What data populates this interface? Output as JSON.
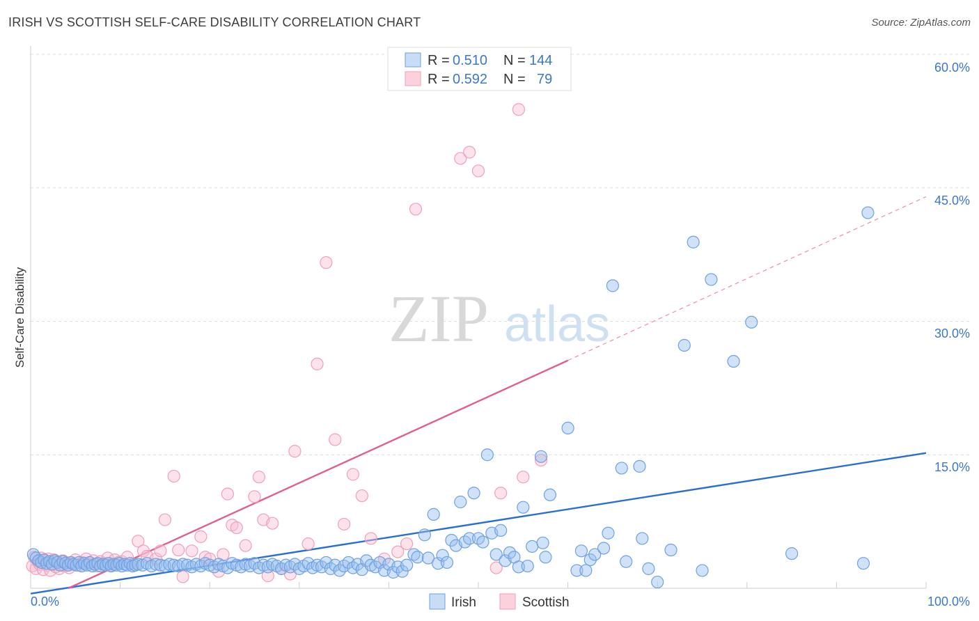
{
  "header": {
    "title": "IRISH VS SCOTTISH SELF-CARE DISABILITY CORRELATION CHART",
    "source": "Source: ZipAtlas.com"
  },
  "watermark": {
    "zip": "ZIP",
    "atlas": "atlas"
  },
  "colors": {
    "irish": "#6fa0e0",
    "irish_line": "#2a6fd0",
    "scottish": "#f0a0b8",
    "scottish_line": "#e0608a",
    "tick_text": "#3a78c9"
  },
  "legend": {
    "irish": {
      "r_label": "R =",
      "r_value": "0.510",
      "n_label": "N =",
      "n_value": "144"
    },
    "scottish": {
      "r_label": "R =",
      "r_value": "0.592",
      "n_label": "N =",
      "n_value": "79"
    }
  },
  "chart_data": {
    "type": "scatter",
    "ylabel": "Self-Care Disability",
    "xlim": [
      0,
      100
    ],
    "ylim": [
      0,
      60
    ],
    "x_tick_labels": [
      "0.0%",
      "100.0%"
    ],
    "y_ticks": [
      15,
      30,
      45,
      60
    ],
    "y_tick_labels": [
      "15.0%",
      "30.0%",
      "45.0%",
      "60.0%"
    ],
    "series": [
      {
        "name": "Irish",
        "trend": {
          "x0": 0,
          "y0": -0.6,
          "x1": 100,
          "y1": 15.2
        },
        "points": [
          [
            0.3,
            3.8
          ],
          [
            0.6,
            3.4
          ],
          [
            0.9,
            3.1
          ],
          [
            1.2,
            2.9
          ],
          [
            1.5,
            3.2
          ],
          [
            1.8,
            2.8
          ],
          [
            2.1,
            3.0
          ],
          [
            2.4,
            2.7
          ],
          [
            2.7,
            3.1
          ],
          [
            3.0,
            2.9
          ],
          [
            3.3,
            2.6
          ],
          [
            3.6,
            3.0
          ],
          [
            3.9,
            2.8
          ],
          [
            4.2,
            2.6
          ],
          [
            4.5,
            2.9
          ],
          [
            4.8,
            2.7
          ],
          [
            5.1,
            2.6
          ],
          [
            5.4,
            2.9
          ],
          [
            5.7,
            2.5
          ],
          [
            6.0,
            2.8
          ],
          [
            6.3,
            2.6
          ],
          [
            6.6,
            2.9
          ],
          [
            6.9,
            2.5
          ],
          [
            7.2,
            2.7
          ],
          [
            7.5,
            2.8
          ],
          [
            7.8,
            2.5
          ],
          [
            8.1,
            2.7
          ],
          [
            8.4,
            2.6
          ],
          [
            8.7,
            2.8
          ],
          [
            9.0,
            2.5
          ],
          [
            9.3,
            2.7
          ],
          [
            9.6,
            2.6
          ],
          [
            9.9,
            2.8
          ],
          [
            10.2,
            2.5
          ],
          [
            10.5,
            2.7
          ],
          [
            10.8,
            2.6
          ],
          [
            11.1,
            2.8
          ],
          [
            11.4,
            2.5
          ],
          [
            11.7,
            2.6
          ],
          [
            12.0,
            2.7
          ],
          [
            12.5,
            2.6
          ],
          [
            13.0,
            2.8
          ],
          [
            13.5,
            2.5
          ],
          [
            14.0,
            2.7
          ],
          [
            14.5,
            2.6
          ],
          [
            15.0,
            2.5
          ],
          [
            15.5,
            2.7
          ],
          [
            16.0,
            2.6
          ],
          [
            16.5,
            2.5
          ],
          [
            17.0,
            2.7
          ],
          [
            17.5,
            2.6
          ],
          [
            18.0,
            2.4
          ],
          [
            18.5,
            2.7
          ],
          [
            19.0,
            2.5
          ],
          [
            19.5,
            2.8
          ],
          [
            20.0,
            2.6
          ],
          [
            20.5,
            2.4
          ],
          [
            21.0,
            2.7
          ],
          [
            21.5,
            2.5
          ],
          [
            22.0,
            2.3
          ],
          [
            22.5,
            2.8
          ],
          [
            23.0,
            2.6
          ],
          [
            23.5,
            2.4
          ],
          [
            24.0,
            2.7
          ],
          [
            24.5,
            2.5
          ],
          [
            25.0,
            2.8
          ],
          [
            25.5,
            2.3
          ],
          [
            26.0,
            2.6
          ],
          [
            26.5,
            2.4
          ],
          [
            27.0,
            2.7
          ],
          [
            27.5,
            2.5
          ],
          [
            28.0,
            2.2
          ],
          [
            28.5,
            2.6
          ],
          [
            29.0,
            2.4
          ],
          [
            29.5,
            2.7
          ],
          [
            30.0,
            2.2
          ],
          [
            30.5,
            2.5
          ],
          [
            31.0,
            2.8
          ],
          [
            31.5,
            2.3
          ],
          [
            32.0,
            2.6
          ],
          [
            32.5,
            2.4
          ],
          [
            33.0,
            2.9
          ],
          [
            33.5,
            2.2
          ],
          [
            34.0,
            2.6
          ],
          [
            34.5,
            2.0
          ],
          [
            35.0,
            2.5
          ],
          [
            35.5,
            2.9
          ],
          [
            36.0,
            2.3
          ],
          [
            36.5,
            2.7
          ],
          [
            37.0,
            2.1
          ],
          [
            37.5,
            3.1
          ],
          [
            38.0,
            2.6
          ],
          [
            38.5,
            2.4
          ],
          [
            39.0,
            2.9
          ],
          [
            39.5,
            2.0
          ],
          [
            40.0,
            2.7
          ],
          [
            40.5,
            1.8
          ],
          [
            41.0,
            2.4
          ],
          [
            41.5,
            1.9
          ],
          [
            42.0,
            2.6
          ],
          [
            42.8,
            3.8
          ],
          [
            43.2,
            3.5
          ],
          [
            44.0,
            6.0
          ],
          [
            44.4,
            3.4
          ],
          [
            45.0,
            8.3
          ],
          [
            45.5,
            2.8
          ],
          [
            46.0,
            3.7
          ],
          [
            46.5,
            2.9
          ],
          [
            47.0,
            5.4
          ],
          [
            47.5,
            4.8
          ],
          [
            48.0,
            9.7
          ],
          [
            48.5,
            5.2
          ],
          [
            49.0,
            5.6
          ],
          [
            49.5,
            10.7
          ],
          [
            50.0,
            5.6
          ],
          [
            50.5,
            5.2
          ],
          [
            51.0,
            15.0
          ],
          [
            51.5,
            6.2
          ],
          [
            52.0,
            3.8
          ],
          [
            52.5,
            6.5
          ],
          [
            53.0,
            3.1
          ],
          [
            53.5,
            4.0
          ],
          [
            54.0,
            3.5
          ],
          [
            54.5,
            2.4
          ],
          [
            55.0,
            9.1
          ],
          [
            55.5,
            2.5
          ],
          [
            56.0,
            4.7
          ],
          [
            57.0,
            14.8
          ],
          [
            57.2,
            5.1
          ],
          [
            57.5,
            3.5
          ],
          [
            58.0,
            10.5
          ],
          [
            60.0,
            18.0
          ],
          [
            61.0,
            2.0
          ],
          [
            61.5,
            4.2
          ],
          [
            62.0,
            2.0
          ],
          [
            62.5,
            3.2
          ],
          [
            63.0,
            3.8
          ],
          [
            64.0,
            4.5
          ],
          [
            64.5,
            6.2
          ],
          [
            65.0,
            34.0
          ],
          [
            66.0,
            13.5
          ],
          [
            66.5,
            3.0
          ],
          [
            68.0,
            13.7
          ],
          [
            68.3,
            5.6
          ],
          [
            69.0,
            2.2
          ],
          [
            70.0,
            0.7
          ],
          [
            71.5,
            4.3
          ],
          [
            73.0,
            27.3
          ],
          [
            74.0,
            38.9
          ],
          [
            75.0,
            2.0
          ],
          [
            76.0,
            34.7
          ],
          [
            78.5,
            25.5
          ],
          [
            80.5,
            29.9
          ],
          [
            85.0,
            3.9
          ],
          [
            93.0,
            2.8
          ],
          [
            93.5,
            42.2
          ]
        ]
      },
      {
        "name": "Scottish",
        "trend": {
          "x0": 4.2,
          "y0": 0,
          "x1": 60,
          "y1": 25.6,
          "dash_x1": 100,
          "dash_y1": 44.0
        },
        "points": [
          [
            0.2,
            2.5
          ],
          [
            0.4,
            3.5
          ],
          [
            0.6,
            2.2
          ],
          [
            0.8,
            3.0
          ],
          [
            1.0,
            2.7
          ],
          [
            1.2,
            3.4
          ],
          [
            1.4,
            2.1
          ],
          [
            1.6,
            3.1
          ],
          [
            1.8,
            2.6
          ],
          [
            2.0,
            3.3
          ],
          [
            2.2,
            2.0
          ],
          [
            2.4,
            2.8
          ],
          [
            2.6,
            3.2
          ],
          [
            2.8,
            2.4
          ],
          [
            3.0,
            3.0
          ],
          [
            3.2,
            2.2
          ],
          [
            3.4,
            2.7
          ],
          [
            3.6,
            3.1
          ],
          [
            3.8,
            2.5
          ],
          [
            4.0,
            2.9
          ],
          [
            4.3,
            2.3
          ],
          [
            4.6,
            2.8
          ],
          [
            5.0,
            3.2
          ],
          [
            5.4,
            2.6
          ],
          [
            5.8,
            2.9
          ],
          [
            6.2,
            3.3
          ],
          [
            6.6,
            2.7
          ],
          [
            7.0,
            3.1
          ],
          [
            7.4,
            2.5
          ],
          [
            7.8,
            3.0
          ],
          [
            8.2,
            2.8
          ],
          [
            8.6,
            3.4
          ],
          [
            9.0,
            2.6
          ],
          [
            9.4,
            3.2
          ],
          [
            9.8,
            2.9
          ],
          [
            10.2,
            3.0
          ],
          [
            10.8,
            3.5
          ],
          [
            11.4,
            2.7
          ],
          [
            12.0,
            5.3
          ],
          [
            12.6,
            4.2
          ],
          [
            13.0,
            3.6
          ],
          [
            14.0,
            3.3
          ],
          [
            14.5,
            4.2
          ],
          [
            15.0,
            7.7
          ],
          [
            16.0,
            12.6
          ],
          [
            16.5,
            4.3
          ],
          [
            17.0,
            1.3
          ],
          [
            18.0,
            4.2
          ],
          [
            19.0,
            5.8
          ],
          [
            19.5,
            3.5
          ],
          [
            20.0,
            3.3
          ],
          [
            21.0,
            1.9
          ],
          [
            21.5,
            3.8
          ],
          [
            22.0,
            10.6
          ],
          [
            22.5,
            7.1
          ],
          [
            23.0,
            6.8
          ],
          [
            24.0,
            4.8
          ],
          [
            25.0,
            10.3
          ],
          [
            25.5,
            12.5
          ],
          [
            26.0,
            7.7
          ],
          [
            26.5,
            1.4
          ],
          [
            27.0,
            7.3
          ],
          [
            28.0,
            2.2
          ],
          [
            29.0,
            1.6
          ],
          [
            29.5,
            15.4
          ],
          [
            31.0,
            5.0
          ],
          [
            32.0,
            25.2
          ],
          [
            33.0,
            36.6
          ],
          [
            34.0,
            16.7
          ],
          [
            35.0,
            7.2
          ],
          [
            36.0,
            12.8
          ],
          [
            37.0,
            10.4
          ],
          [
            38.0,
            5.6
          ],
          [
            39.5,
            3.3
          ],
          [
            41.0,
            4.1
          ],
          [
            42.0,
            5.0
          ],
          [
            43.0,
            42.6
          ],
          [
            48.0,
            48.3
          ],
          [
            49.0,
            49.0
          ],
          [
            50.0,
            46.9
          ],
          [
            52.0,
            2.3
          ],
          [
            52.5,
            10.7
          ],
          [
            54.5,
            53.8
          ],
          [
            55.0,
            12.5
          ],
          [
            57.0,
            14.4
          ]
        ]
      }
    ]
  }
}
